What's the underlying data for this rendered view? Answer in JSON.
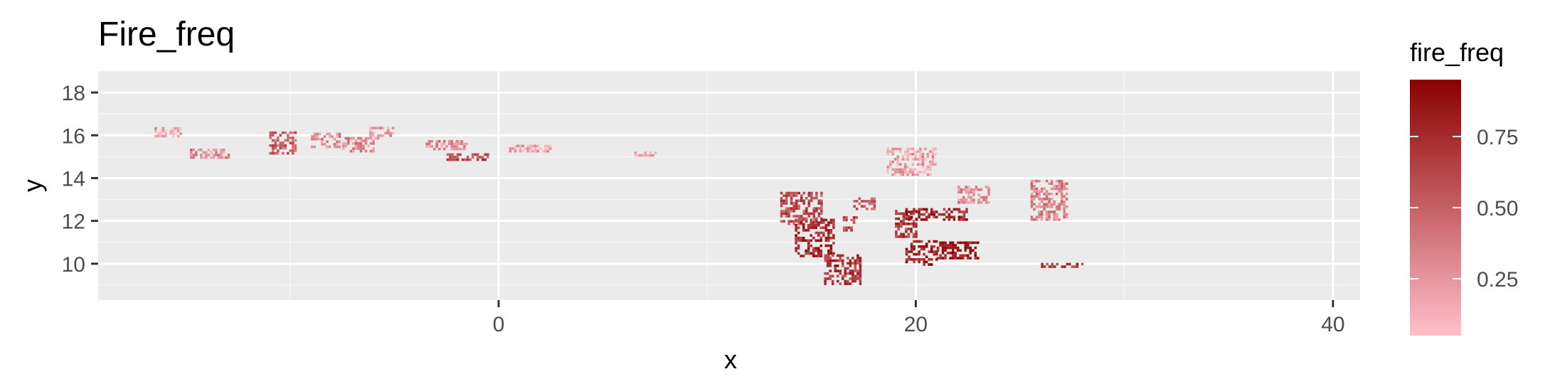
{
  "chart_data": {
    "type": "heatmap",
    "title": "Fire_freq",
    "xlabel": "x",
    "ylabel": "y",
    "xlim": [
      -19.2,
      41.3
    ],
    "ylim": [
      8.3,
      19.0
    ],
    "x_ticks": [
      0,
      20,
      40
    ],
    "x_tick_labels": [
      "0",
      "20",
      "40"
    ],
    "y_ticks": [
      10,
      12,
      14,
      16,
      18
    ],
    "y_tick_labels": [
      "10",
      "12",
      "14",
      "16",
      "18"
    ],
    "grid": true,
    "legend": {
      "title": "fire_freq",
      "placement": "right",
      "range": [
        0.05,
        0.95
      ],
      "breaks": [
        0.25,
        0.5,
        0.75
      ],
      "break_labels": [
        "0.25",
        "0.50",
        "0.75"
      ],
      "low_color": "#FFC0CB",
      "high_color": "#8B0000"
    },
    "colors": {
      "panel": "#EBEBEB",
      "grid_major": "#FFFFFF",
      "grid_minor": "#F5F5F5",
      "text": "#000000",
      "tick_text": "#4D4D4D"
    },
    "regions": [
      {
        "x": [
          -16.5,
          -15.2
        ],
        "y": [
          15.9,
          16.3
        ],
        "value": 0.2
      },
      {
        "x": [
          -14.8,
          -13.0
        ],
        "y": [
          14.9,
          15.3
        ],
        "value": 0.3
      },
      {
        "x": [
          -11.0,
          -9.8
        ],
        "y": [
          15.1,
          16.1
        ],
        "value": 0.5
      },
      {
        "x": [
          -9.0,
          -7.6
        ],
        "y": [
          15.4,
          16.0
        ],
        "value": 0.3
      },
      {
        "x": [
          -7.5,
          -6.0
        ],
        "y": [
          15.2,
          15.8
        ],
        "value": 0.3
      },
      {
        "x": [
          -6.2,
          -5.0
        ],
        "y": [
          15.8,
          16.4
        ],
        "value": 0.25
      },
      {
        "x": [
          -3.5,
          -1.5
        ],
        "y": [
          15.3,
          15.7
        ],
        "value": 0.3
      },
      {
        "x": [
          -2.5,
          -0.5
        ],
        "y": [
          14.8,
          15.1
        ],
        "value": 0.6
      },
      {
        "x": [
          0.5,
          2.5
        ],
        "y": [
          15.2,
          15.5
        ],
        "value": 0.2
      },
      {
        "x": [
          6.5,
          7.5
        ],
        "y": [
          15.0,
          15.2
        ],
        "value": 0.2
      },
      {
        "x": [
          13.5,
          15.5
        ],
        "y": [
          11.8,
          13.3
        ],
        "value": 0.6
      },
      {
        "x": [
          14.2,
          16.0
        ],
        "y": [
          10.3,
          12.0
        ],
        "value": 0.75
      },
      {
        "x": [
          15.6,
          17.3
        ],
        "y": [
          9.0,
          10.4
        ],
        "value": 0.7
      },
      {
        "x": [
          16.5,
          17.2
        ],
        "y": [
          11.5,
          12.2
        ],
        "value": 0.6
      },
      {
        "x": [
          17.0,
          18.0
        ],
        "y": [
          12.5,
          13.0
        ],
        "value": 0.5
      },
      {
        "x": [
          18.6,
          21.0
        ],
        "y": [
          14.1,
          15.3
        ],
        "value": 0.2
      },
      {
        "x": [
          19.0,
          20.0
        ],
        "y": [
          11.2,
          12.5
        ],
        "value": 0.7
      },
      {
        "x": [
          19.5,
          22.5
        ],
        "y": [
          12.0,
          12.5
        ],
        "value": 0.8
      },
      {
        "x": [
          19.5,
          21.0
        ],
        "y": [
          9.9,
          11.0
        ],
        "value": 0.8
      },
      {
        "x": [
          21.0,
          23.0
        ],
        "y": [
          10.2,
          11.0
        ],
        "value": 0.85
      },
      {
        "x": [
          22.0,
          23.5
        ],
        "y": [
          12.8,
          13.6
        ],
        "value": 0.3
      },
      {
        "x": [
          25.5,
          27.2
        ],
        "y": [
          12.0,
          13.8
        ],
        "value": 0.35
      },
      {
        "x": [
          26.0,
          28.0
        ],
        "y": [
          9.8,
          10.0
        ],
        "value": 0.7
      }
    ]
  }
}
